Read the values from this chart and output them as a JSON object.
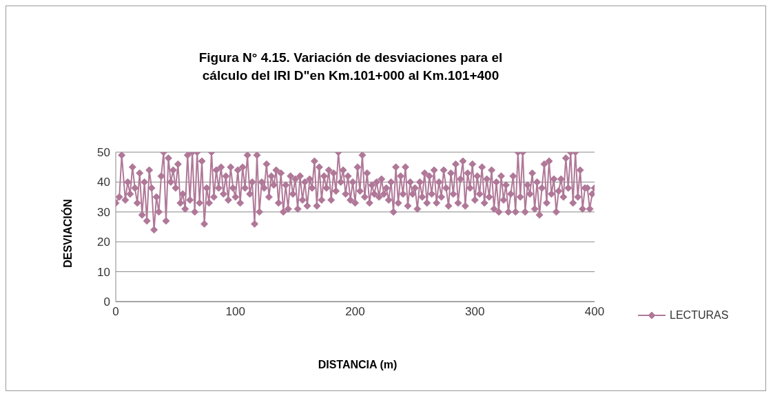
{
  "chart_data": {
    "type": "line",
    "title": "Figura N° 4.15. Variación de desviaciones para el cálculo del IRI D\"en Km.101+000 al Km.101+400",
    "xlabel": "DISTANCIA (m)",
    "ylabel": "DESVIACIÓN",
    "xlim": [
      0,
      400
    ],
    "xticks": [
      0,
      100,
      200,
      300,
      400
    ],
    "ylim": [
      0,
      50
    ],
    "yticks": [
      0,
      10,
      20,
      30,
      40,
      50
    ],
    "grid": "y",
    "legend": "right",
    "marker": "diamond",
    "line_style": "solid",
    "series": [
      {
        "name": "LECTURAS",
        "color": "#b07898",
        "x": [
          0,
          3,
          5,
          8,
          10,
          12,
          14,
          16,
          18,
          20,
          22,
          24,
          26,
          28,
          30,
          32,
          34,
          36,
          38,
          40,
          42,
          44,
          46,
          48,
          50,
          52,
          54,
          56,
          58,
          60,
          62,
          64,
          66,
          68,
          70,
          72,
          74,
          76,
          78,
          80,
          82,
          84,
          86,
          88,
          90,
          92,
          94,
          96,
          98,
          100,
          102,
          104,
          106,
          108,
          110,
          112,
          114,
          116,
          118,
          120,
          122,
          124,
          126,
          128,
          130,
          132,
          134,
          136,
          138,
          140,
          142,
          144,
          146,
          148,
          150,
          152,
          154,
          156,
          158,
          160,
          162,
          164,
          166,
          168,
          170,
          172,
          174,
          176,
          178,
          180,
          182,
          184,
          186,
          188,
          190,
          192,
          194,
          196,
          198,
          200,
          202,
          204,
          206,
          208,
          210,
          212,
          214,
          216,
          218,
          220,
          222,
          224,
          226,
          228,
          230,
          232,
          234,
          236,
          238,
          240,
          242,
          244,
          246,
          248,
          250,
          252,
          254,
          256,
          258,
          260,
          262,
          264,
          266,
          268,
          270,
          272,
          274,
          276,
          278,
          280,
          282,
          284,
          286,
          288,
          290,
          292,
          294,
          296,
          298,
          300,
          302,
          304,
          306,
          308,
          310,
          312,
          314,
          316,
          318,
          320,
          322,
          324,
          326,
          328,
          330,
          332,
          334,
          336,
          338,
          340,
          342,
          344,
          346,
          348,
          350,
          352,
          354,
          356,
          358,
          360,
          362,
          364,
          366,
          368,
          370,
          372,
          374,
          376,
          378,
          380,
          382,
          384,
          386,
          388,
          390,
          392,
          394,
          396,
          398,
          400
        ],
        "values": [
          33,
          35,
          49,
          34,
          40,
          36,
          45,
          38,
          33,
          43,
          29,
          40,
          27,
          44,
          38,
          24,
          35,
          30,
          42,
          50,
          27,
          48,
          40,
          44,
          38,
          46,
          33,
          36,
          31,
          49,
          34,
          50,
          30,
          50,
          33,
          47,
          26,
          38,
          33,
          50,
          35,
          44,
          38,
          45,
          36,
          42,
          34,
          45,
          38,
          35,
          44,
          33,
          45,
          38,
          49,
          36,
          40,
          26,
          49,
          30,
          40,
          38,
          46,
          35,
          42,
          39,
          44,
          33,
          43,
          30,
          39,
          31,
          42,
          36,
          41,
          31,
          42,
          34,
          40,
          32,
          41,
          38,
          47,
          32,
          45,
          34,
          42,
          38,
          44,
          34,
          43,
          37,
          50,
          40,
          44,
          36,
          42,
          34,
          40,
          33,
          45,
          37,
          49,
          35,
          43,
          33,
          39,
          36,
          40,
          35,
          41,
          36,
          38,
          34,
          40,
          30,
          45,
          33,
          42,
          36,
          45,
          32,
          40,
          36,
          38,
          31,
          40,
          35,
          43,
          33,
          42,
          36,
          44,
          33,
          40,
          35,
          44,
          38,
          32,
          43,
          36,
          46,
          33,
          41,
          47,
          32,
          43,
          38,
          46,
          34,
          42,
          36,
          45,
          33,
          41,
          35,
          44,
          31,
          40,
          30,
          42,
          34,
          39,
          30,
          36,
          42,
          30,
          50,
          35,
          50,
          30,
          39,
          36,
          43,
          31,
          40,
          29,
          38,
          46,
          33,
          47,
          36,
          41,
          30,
          37,
          41,
          35,
          48,
          38,
          50,
          33,
          50,
          35,
          44,
          31,
          38,
          38,
          31,
          36,
          38
        ]
      }
    ]
  }
}
